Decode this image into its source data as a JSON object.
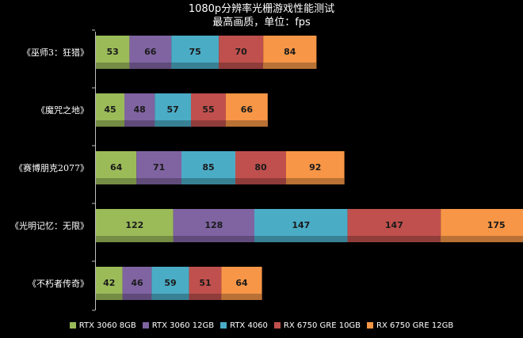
{
  "chart_data": {
    "type": "bar",
    "orientation": "horizontal",
    "stacked": true,
    "title": "1080p分辨率光栅游戏性能测试",
    "subtitle": "最高画质，单位：fps",
    "categories": [
      "《巫师3：狂猎》",
      "《魔咒之地》",
      "《赛博朋克2077》",
      "《光明记忆：无限》",
      "《不朽者传奇》"
    ],
    "series": [
      {
        "name": "RTX 3060 8GB",
        "color": "#9bbb59",
        "values": [
          53,
          45,
          64,
          122,
          42
        ]
      },
      {
        "name": "RTX 3060 12GB",
        "color": "#8064a2",
        "values": [
          66,
          48,
          71,
          128,
          46
        ]
      },
      {
        "name": "RTX 4060",
        "color": "#4bacc6",
        "values": [
          75,
          57,
          85,
          147,
          59
        ]
      },
      {
        "name": "RX 6750 GRE 10GB",
        "color": "#c0504d",
        "values": [
          70,
          55,
          80,
          147,
          51
        ]
      },
      {
        "name": "RX 6750 GRE 12GB",
        "color": "#f79646",
        "values": [
          84,
          66,
          92,
          175,
          64
        ]
      }
    ],
    "legend_position": "bottom",
    "grid": false,
    "data_labels": true
  }
}
